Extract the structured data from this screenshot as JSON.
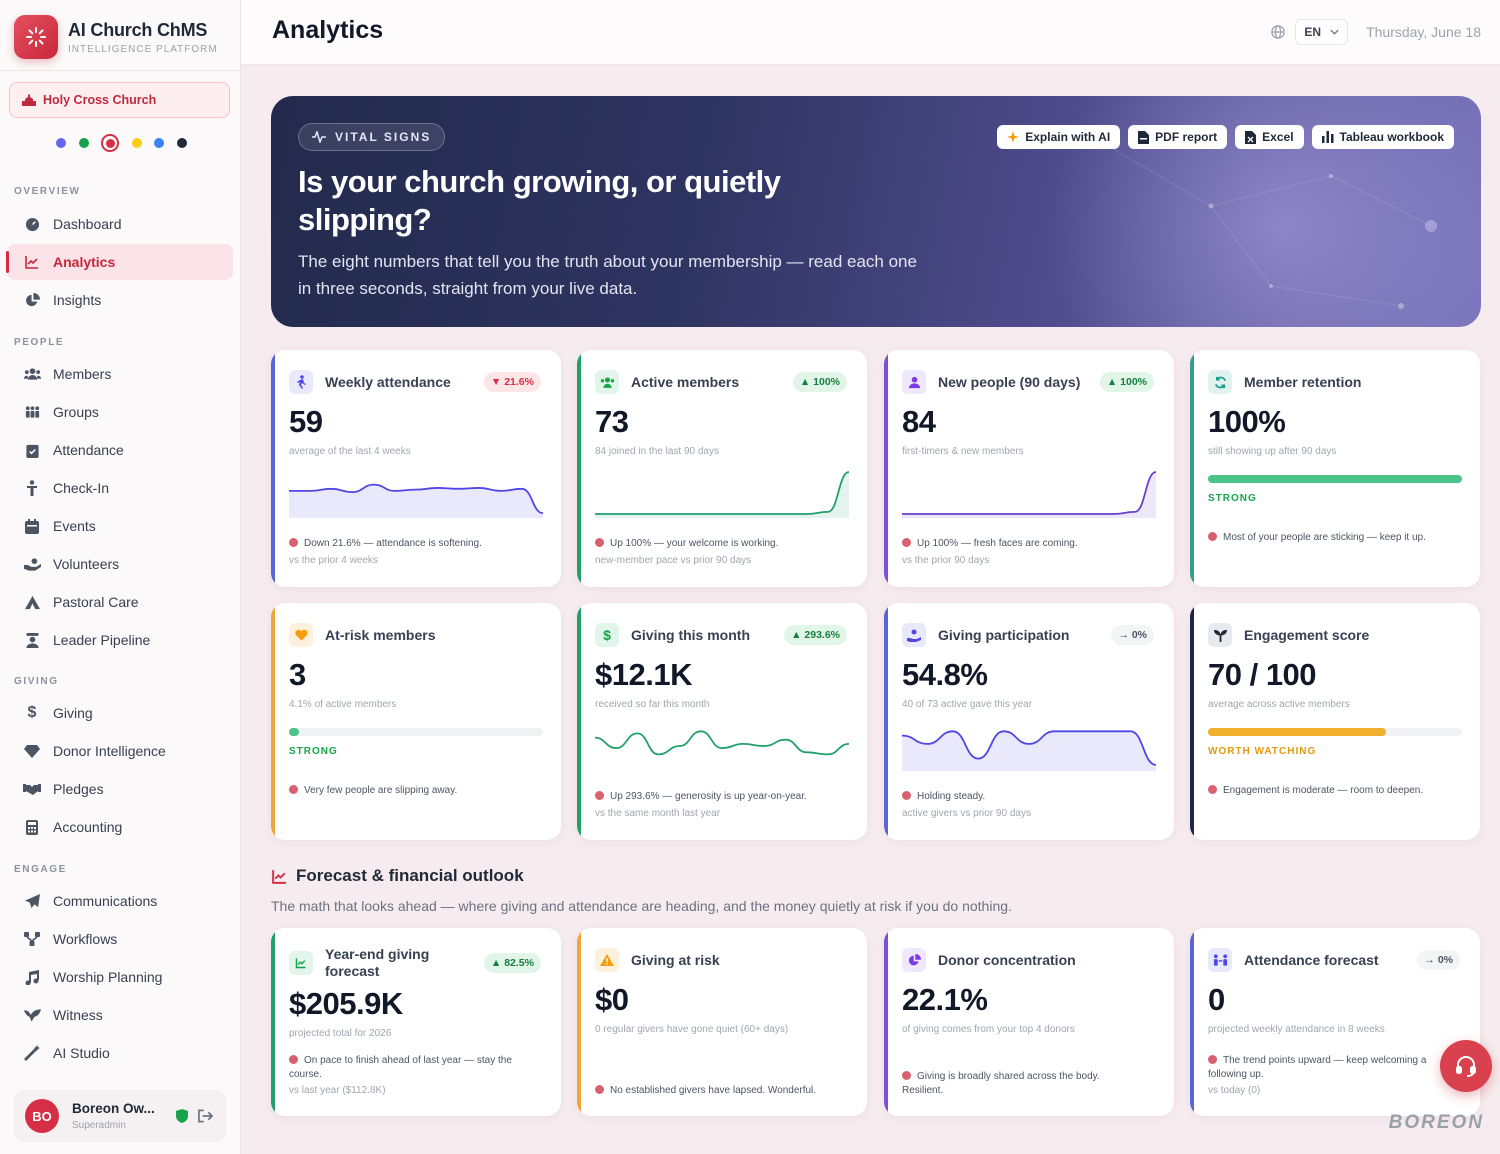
{
  "brand": {
    "title": "AI Church ChMS",
    "subtitle": "INTELLIGENCE PLATFORM"
  },
  "church": "Holy Cross Church",
  "theme_dots": [
    "#6366f1",
    "#16a34a",
    "#d62f45",
    "#facc15",
    "#3b82f6",
    "#1f2937"
  ],
  "sections": {
    "overview": "OVERVIEW",
    "people": "PEOPLE",
    "giving": "GIVING",
    "engage": "ENGAGE"
  },
  "nav": {
    "dashboard": "Dashboard",
    "analytics": "Analytics",
    "insights": "Insights",
    "members": "Members",
    "groups": "Groups",
    "attendance": "Attendance",
    "checkin": "Check-In",
    "events": "Events",
    "volunteers": "Volunteers",
    "pastoral": "Pastoral Care",
    "pipeline": "Leader Pipeline",
    "giving": "Giving",
    "donor": "Donor Intelligence",
    "pledges": "Pledges",
    "accounting": "Accounting",
    "comms": "Communications",
    "workflows": "Workflows",
    "worship": "Worship Planning",
    "witness": "Witness",
    "aistudio": "AI Studio"
  },
  "user": {
    "initials": "BO",
    "name": "Boreon Ow...",
    "role": "Superadmin"
  },
  "header": {
    "title": "Analytics",
    "lang": "EN",
    "date": "Thursday, June 18"
  },
  "hero": {
    "tag": "VITAL SIGNS",
    "title": "Is your church growing, or quietly slipping?",
    "subtitle": "The eight numbers that tell you the truth about your membership — read each one in three seconds, straight from your live data.",
    "buttons": {
      "explain": "Explain with AI",
      "pdf": "PDF report",
      "excel": "Excel",
      "tableau": "Tableau workbook"
    }
  },
  "cards": {
    "attendance": {
      "title": "Weekly attendance",
      "badge": "▼ 21.6%",
      "value": "59",
      "sub": "average of the last 4 weeks",
      "note": "Down 21.6% — attendance is softening.",
      "foot": "vs the prior 4 weeks",
      "trend": [
        0.55,
        0.55,
        0.6,
        0.52,
        0.7,
        0.55,
        0.58,
        0.62,
        0.6,
        0.62,
        0.55,
        0.6,
        0.02
      ]
    },
    "active": {
      "title": "Active members",
      "badge": "▲ 100%",
      "value": "73",
      "sub": "84 joined in the last 90 days",
      "note": "Up 100% — your welcome is working.",
      "foot": "new-member pace vs prior 90 days",
      "trend": [
        0,
        0,
        0,
        0,
        0,
        0,
        0,
        0,
        0,
        0,
        0,
        0.05,
        1
      ]
    },
    "newpeople": {
      "title": "New people (90 days)",
      "badge": "▲ 100%",
      "value": "84",
      "sub": "first-timers & new members",
      "note": "Up 100% — fresh faces are coming.",
      "foot": "vs the prior 90 days",
      "trend": [
        0,
        0,
        0,
        0,
        0,
        0,
        0,
        0,
        0,
        0,
        0,
        0.05,
        1
      ]
    },
    "retention": {
      "title": "Member retention",
      "value": "100%",
      "sub": "still showing up after 90 days",
      "level": "STRONG",
      "progress": 1.0,
      "note": "Most of your people are sticking — keep it up."
    },
    "atrisk": {
      "title": "At-risk members",
      "value": "3",
      "sub": "4.1% of active members",
      "level": "STRONG",
      "progress": 0.041,
      "note": "Very few people are slipping away."
    },
    "givingmonth": {
      "title": "Giving this month",
      "badge": "▲ 293.6%",
      "value": "$12.1K",
      "sub": "received so far this month",
      "note": "Up 293.6% — generosity is up year-on-year.",
      "foot": "vs the same month last year",
      "trend": [
        0.7,
        0.45,
        0.8,
        0.3,
        0.5,
        0.85,
        0.45,
        0.55,
        0.5,
        0.65,
        0.35,
        0.3,
        0.55
      ]
    },
    "participation": {
      "title": "Giving participation",
      "badge": "→ 0%",
      "value": "54.8%",
      "sub": "40 of 73 active gave this year",
      "note": "Holding steady.",
      "foot": "active givers vs prior 90 days",
      "trend": [
        0.75,
        0.55,
        0.85,
        0.2,
        0.85,
        0.55,
        0.85,
        0.85,
        0.85,
        0.85,
        0.05
      ]
    },
    "engagement": {
      "title": "Engagement score",
      "value": "70 / 100",
      "sub": "average across active members",
      "level": "WORTH WATCHING",
      "progress": 0.7,
      "note": "Engagement is moderate — room to deepen."
    }
  },
  "forecast": {
    "title": "Forecast & financial outlook",
    "subtitle": "The math that looks ahead — where giving and attendance are heading, and the money quietly at risk if you do nothing.",
    "yearend": {
      "title": "Year-end giving forecast",
      "badge": "▲ 82.5%",
      "value": "$205.9K",
      "sub": "projected total for 2026",
      "note": "On pace to finish ahead of last year — stay the course.",
      "foot": "vs last year ($112.8K)"
    },
    "atrisk": {
      "title": "Giving at risk",
      "value": "$0",
      "sub": "0 regular givers have gone quiet (60+ days)",
      "note": "No established givers have lapsed. Wonderful."
    },
    "concentration": {
      "title": "Donor concentration",
      "value": "22.1%",
      "sub": "of giving comes from your top 4 donors",
      "note": "Giving is broadly shared across the body. Resilient."
    },
    "attforecast": {
      "title": "Attendance forecast",
      "badge": "→ 0%",
      "value": "0",
      "sub": "projected weekly attendance in 8 weeks",
      "note": "The trend points upward — keep welcoming a following up.",
      "foot": "vs today (0)"
    }
  },
  "watermark": "BOREON"
}
